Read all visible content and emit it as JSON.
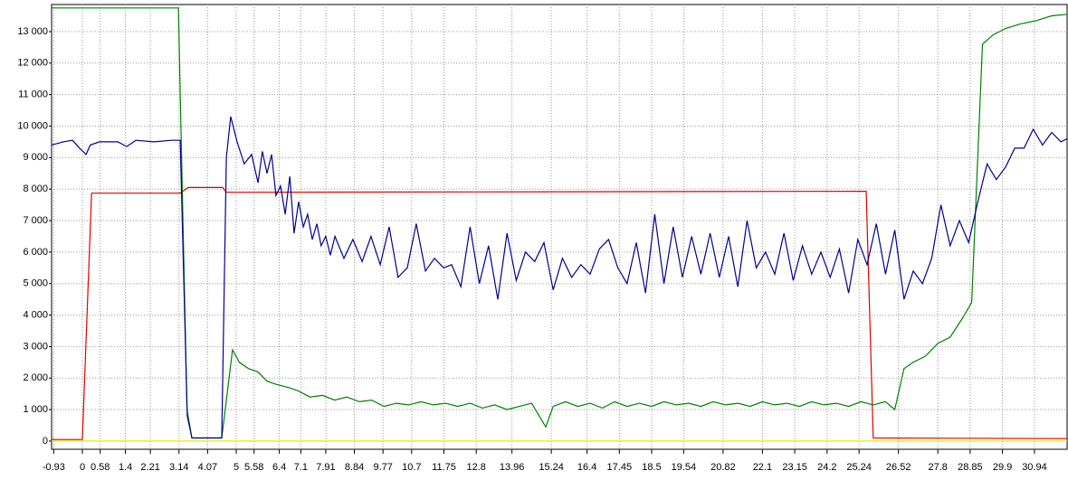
{
  "chart_data": {
    "type": "line",
    "xlim": [
      -1.0,
      32.0
    ],
    "ylim": [
      -260,
      13860
    ],
    "xticks": [
      -0.93,
      0,
      0.58,
      1.4,
      2.21,
      3.14,
      4.07,
      5,
      5.58,
      6.4,
      7.1,
      7.91,
      8.84,
      9.77,
      10.7,
      11.75,
      12.8,
      13.96,
      15.24,
      16.4,
      17.45,
      18.5,
      19.54,
      20.82,
      22.1,
      23.15,
      24.2,
      25.24,
      26.52,
      27.8,
      28.85,
      29.9,
      30.94
    ],
    "yticks": [
      0,
      {
        "value": 1000,
        "label": "1 000"
      },
      {
        "value": 2000,
        "label": "2 000"
      },
      {
        "value": 3000,
        "label": "3 000"
      },
      {
        "value": 4000,
        "label": "4 000"
      },
      {
        "value": 5000,
        "label": "5 000"
      },
      {
        "value": 6000,
        "label": "6 000"
      },
      {
        "value": 7000,
        "label": "7 000"
      },
      {
        "value": 8000,
        "label": "8 000"
      },
      {
        "value": 9000,
        "label": "9 000"
      },
      {
        "value": 10000,
        "label": "10 000"
      },
      {
        "value": 11000,
        "label": "11 000"
      },
      {
        "value": 12000,
        "label": "12 000"
      },
      {
        "value": 13000,
        "label": "13 000"
      }
    ],
    "grid": true,
    "series": [
      {
        "color": "#e8e800",
        "x": [
          -1.0,
          32.0
        ],
        "values": [
          0,
          0
        ]
      },
      {
        "color": "#e00000",
        "x": [
          -1.0,
          0.0,
          0.3,
          3.18,
          3.44,
          4.56,
          4.68,
          25.47,
          25.7,
          32.0
        ],
        "values": [
          50,
          50,
          7870,
          7870,
          8050,
          8050,
          7900,
          7930,
          100,
          80
        ]
      },
      {
        "color": "#008000",
        "x": [
          -1.0,
          3.12,
          3.4,
          3.56,
          4.53,
          4.88,
          5.1,
          5.4,
          5.7,
          6.0,
          6.3,
          6.7,
          7.0,
          7.4,
          7.8,
          8.2,
          8.6,
          9.0,
          9.4,
          9.8,
          10.2,
          10.6,
          11.0,
          11.4,
          11.8,
          12.2,
          12.6,
          13.0,
          13.4,
          13.8,
          14.2,
          14.6,
          15.06,
          15.3,
          15.7,
          16.1,
          16.5,
          16.9,
          17.3,
          17.7,
          18.1,
          18.5,
          18.9,
          19.3,
          19.7,
          20.1,
          20.5,
          20.9,
          21.3,
          21.7,
          22.1,
          22.5,
          22.9,
          23.3,
          23.7,
          24.1,
          24.5,
          24.9,
          25.3,
          25.7,
          26.1,
          26.4,
          26.7,
          27.0,
          27.4,
          27.8,
          28.2,
          28.6,
          28.9,
          29.25,
          29.6,
          30.0,
          30.5,
          31.0,
          31.5,
          32.0
        ],
        "values": [
          13750,
          13750,
          1000,
          100,
          100,
          2900,
          2500,
          2300,
          2200,
          1900,
          1800,
          1700,
          1600,
          1400,
          1450,
          1300,
          1400,
          1250,
          1300,
          1100,
          1200,
          1150,
          1250,
          1150,
          1200,
          1100,
          1200,
          1050,
          1150,
          1000,
          1100,
          1200,
          450,
          1100,
          1250,
          1100,
          1200,
          1050,
          1250,
          1100,
          1200,
          1100,
          1250,
          1150,
          1200,
          1100,
          1250,
          1150,
          1200,
          1100,
          1250,
          1150,
          1200,
          1100,
          1250,
          1150,
          1200,
          1100,
          1250,
          1150,
          1250,
          1000,
          2300,
          2500,
          2700,
          3100,
          3300,
          3900,
          4400,
          12600,
          12900,
          13100,
          13250,
          13350,
          13500,
          13550
        ]
      },
      {
        "color": "#000090",
        "x": [
          -1.0,
          -0.62,
          -0.32,
          -0.09,
          0.12,
          0.26,
          0.56,
          1.15,
          1.44,
          1.74,
          2.32,
          2.91,
          3.18,
          3.41,
          3.56,
          4.53,
          4.68,
          4.82,
          5.03,
          5.26,
          5.5,
          5.71,
          5.85,
          6.0,
          6.15,
          6.29,
          6.44,
          6.59,
          6.74,
          6.88,
          7.03,
          7.18,
          7.32,
          7.47,
          7.62,
          7.76,
          7.91,
          8.06,
          8.21,
          8.5,
          8.79,
          9.09,
          9.38,
          9.68,
          9.97,
          10.26,
          10.56,
          10.85,
          11.15,
          11.44,
          11.74,
          12.0,
          12.3,
          12.6,
          12.9,
          13.2,
          13.5,
          13.8,
          14.1,
          14.4,
          14.7,
          15.0,
          15.3,
          15.6,
          15.9,
          16.2,
          16.5,
          16.8,
          17.1,
          17.4,
          17.7,
          18.0,
          18.3,
          18.6,
          18.9,
          19.2,
          19.5,
          19.8,
          20.1,
          20.4,
          20.7,
          21.0,
          21.3,
          21.6,
          21.9,
          22.2,
          22.5,
          22.8,
          23.1,
          23.4,
          23.7,
          24.0,
          24.3,
          24.6,
          24.9,
          25.2,
          25.5,
          25.8,
          26.1,
          26.4,
          26.7,
          27.0,
          27.3,
          27.6,
          27.9,
          28.2,
          28.5,
          28.8,
          29.1,
          29.4,
          29.7,
          30.0,
          30.3,
          30.6,
          30.9,
          31.2,
          31.5,
          31.8,
          32.0
        ],
        "values": [
          9400,
          9500,
          9550,
          9300,
          9100,
          9400,
          9500,
          9500,
          9350,
          9550,
          9500,
          9550,
          9550,
          800,
          100,
          100,
          9000,
          10300,
          9500,
          8800,
          9100,
          8200,
          9200,
          8500,
          9100,
          7800,
          8100,
          7200,
          8400,
          6600,
          7600,
          6800,
          7200,
          6400,
          6900,
          6200,
          6500,
          5900,
          6500,
          5800,
          6400,
          5700,
          6500,
          5600,
          6800,
          5200,
          5500,
          6900,
          5400,
          5800,
          5500,
          5600,
          4900,
          6800,
          5000,
          6200,
          4500,
          6600,
          5100,
          6000,
          5700,
          6300,
          4800,
          5800,
          5200,
          5600,
          5300,
          6100,
          6400,
          5500,
          5000,
          6300,
          4700,
          7200,
          5000,
          6800,
          5200,
          6500,
          5300,
          6600,
          5200,
          6500,
          4900,
          7000,
          5500,
          6000,
          5300,
          6600,
          5100,
          6200,
          5300,
          6000,
          5200,
          6100,
          4700,
          6400,
          5600,
          6900,
          5300,
          6700,
          4500,
          5400,
          5000,
          5800,
          7500,
          6200,
          7000,
          6300,
          7600,
          8800,
          8300,
          8700,
          9300,
          9300,
          9900,
          9400,
          9800,
          9500,
          9600
        ]
      }
    ]
  }
}
